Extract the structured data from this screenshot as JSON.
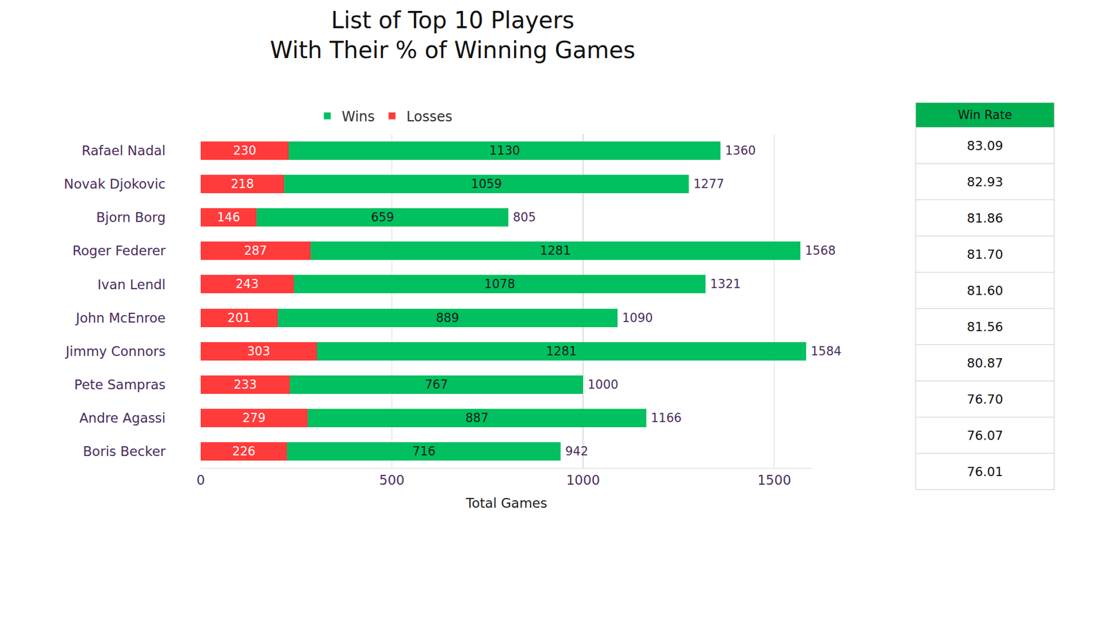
{
  "chart_data": {
    "type": "bar",
    "title": "List of Top 10 Players\nWith Their % of Winning Games",
    "x_label": "Total Games",
    "categories": [
      "Rafael Nadal",
      "Novak Djokovic",
      "Bjorn Borg",
      "Roger Federer",
      "Ivan Lendl",
      "John McEnroe",
      "Jimmy Connors",
      "Pete Sampras",
      "Andre Agassi",
      "Boris Becker"
    ],
    "series": [
      {
        "name": "Losses",
        "color": "#ff3b3b",
        "values": [
          230,
          218,
          146,
          287,
          243,
          201,
          303,
          233,
          279,
          226
        ]
      },
      {
        "name": "Wins",
        "color": "#00c060",
        "values": [
          1130,
          1059,
          659,
          1281,
          1078,
          889,
          1281,
          767,
          887,
          716
        ]
      }
    ],
    "totals": [
      1360,
      1277,
      805,
      1568,
      1321,
      1090,
      1584,
      1000,
      1166,
      942
    ],
    "xlim": [
      0,
      1600
    ],
    "xticks": [
      0,
      500,
      1000,
      1500
    ],
    "orientation": "horizontal",
    "stacked": true,
    "data_labels": true,
    "grid": true,
    "legend": "top"
  },
  "table": {
    "header": "Win Rate",
    "rows": [
      "83.09",
      "82.93",
      "81.86",
      "81.70",
      "81.60",
      "81.56",
      "80.87",
      "76.70",
      "76.07",
      "76.01"
    ]
  }
}
